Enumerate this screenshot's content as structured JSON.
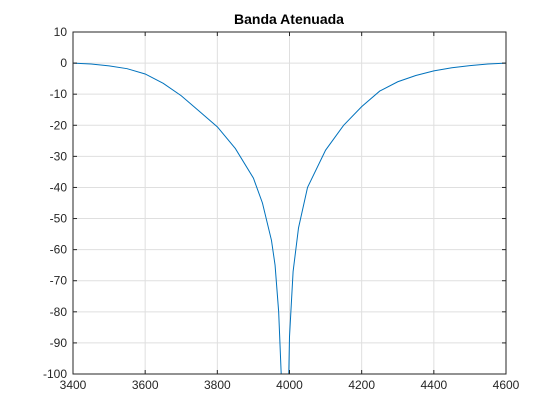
{
  "chart_data": {
    "type": "line",
    "title": "Banda Atenuada",
    "xlabel": "",
    "ylabel": "",
    "xlim": [
      3400,
      4600
    ],
    "ylim": [
      -100,
      10
    ],
    "xticks": [
      3400,
      3600,
      3800,
      4000,
      4200,
      4400,
      4600
    ],
    "yticks": [
      10,
      0,
      -10,
      -20,
      -30,
      -40,
      -50,
      -60,
      -70,
      -80,
      -90,
      -100
    ],
    "grid": true,
    "series": [
      {
        "color": "#0072bd",
        "segments": [
          {
            "x": [
              3400,
              3450,
              3500,
              3550,
              3600,
              3650,
              3700,
              3750,
              3800,
              3850,
              3900,
              3925,
              3950,
              3960,
              3970,
              3977
            ],
            "y": [
              0,
              -0.3,
              -0.9,
              -1.8,
              -3.5,
              -6.5,
              -10.5,
              -15.5,
              -20.5,
              -27.5,
              -37,
              -45,
              -57,
              -65,
              -80,
              -100
            ]
          },
          {
            "x": [
              3998,
              4000,
              4010,
              4025,
              4050,
              4100,
              4150,
              4200,
              4250,
              4300,
              4350,
              4400,
              4450,
              4500,
              4550,
              4600
            ],
            "y": [
              -100,
              -88,
              -67,
              -53,
              -40,
              -28,
              -20,
              -14,
              -9,
              -6,
              -4,
              -2.5,
              -1.5,
              -0.8,
              -0.3,
              0
            ]
          }
        ]
      }
    ]
  }
}
